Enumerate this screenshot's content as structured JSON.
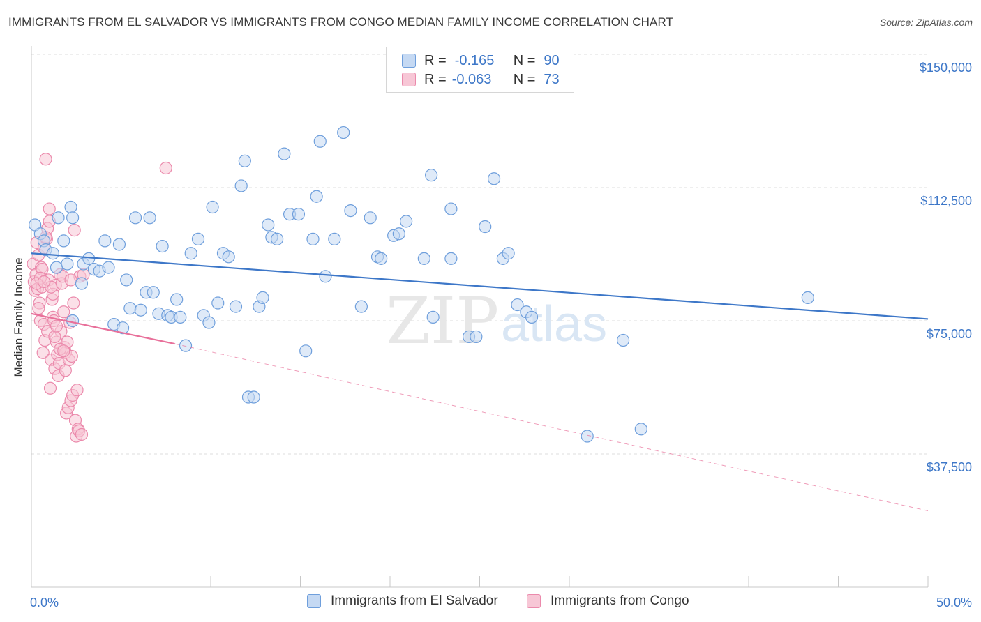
{
  "header": {
    "title": "IMMIGRANTS FROM EL SALVADOR VS IMMIGRANTS FROM CONGO MEDIAN FAMILY INCOME CORRELATION CHART",
    "source": "Source: ZipAtlas.com"
  },
  "legend": {
    "rows": [
      {
        "r_label": "R =",
        "r_value": "-0.165",
        "n_label": "N =",
        "n_value": "90"
      },
      {
        "r_label": "R =",
        "r_value": "-0.063",
        "n_label": "N =",
        "n_value": "73"
      }
    ]
  },
  "watermark": {
    "zip": "ZIP",
    "atlas": "atlas"
  },
  "colors": {
    "blue": "#3d77c8",
    "blue_fill": "#c5d9f3",
    "blue_stroke": "#6f9fdc",
    "pink": "#e8709a",
    "pink_fill": "#f7c7d6",
    "pink_stroke": "#eb8aac"
  },
  "chart_data": {
    "type": "scatter",
    "title": "IMMIGRANTS FROM EL SALVADOR VS IMMIGRANTS FROM CONGO MEDIAN FAMILY INCOME CORRELATION CHART",
    "xlabel": "",
    "ylabel": "Median Family Income",
    "xlim": [
      0,
      50
    ],
    "ylim": [
      0,
      150000
    ],
    "x_tick_labels": [
      "0.0%",
      "50.0%"
    ],
    "y_ticks": [
      37500,
      75000,
      112500,
      150000
    ],
    "y_tick_labels": [
      "$37,500",
      "$75,000",
      "$112,500",
      "$150,000"
    ],
    "grid": true,
    "legend_position": "bottom",
    "series": [
      {
        "name": "Immigrants from El Salvador",
        "color": "#3d77c8",
        "trend": {
          "x": [
            0,
            50
          ],
          "y": [
            94000,
            75500
          ]
        },
        "points": [
          [
            0.2,
            102000
          ],
          [
            0.5,
            99500
          ],
          [
            0.7,
            97500
          ],
          [
            0.8,
            95000
          ],
          [
            1.2,
            94000
          ],
          [
            1.4,
            90000
          ],
          [
            1.5,
            104000
          ],
          [
            1.8,
            97500
          ],
          [
            2.0,
            91000
          ],
          [
            2.2,
            107000
          ],
          [
            2.3,
            75000
          ],
          [
            2.3,
            104000
          ],
          [
            2.8,
            85500
          ],
          [
            2.9,
            91000
          ],
          [
            3.2,
            92500
          ],
          [
            3.5,
            89500
          ],
          [
            3.8,
            89000
          ],
          [
            4.1,
            97500
          ],
          [
            4.3,
            90000
          ],
          [
            4.6,
            74000
          ],
          [
            4.9,
            96500
          ],
          [
            5.1,
            73000
          ],
          [
            5.3,
            86500
          ],
          [
            5.5,
            78500
          ],
          [
            5.8,
            104000
          ],
          [
            6.1,
            78000
          ],
          [
            6.4,
            83000
          ],
          [
            6.6,
            104000
          ],
          [
            6.8,
            83000
          ],
          [
            7.1,
            77000
          ],
          [
            7.3,
            96000
          ],
          [
            7.6,
            76500
          ],
          [
            7.8,
            76000
          ],
          [
            8.1,
            81000
          ],
          [
            8.3,
            76000
          ],
          [
            8.6,
            68000
          ],
          [
            8.9,
            94000
          ],
          [
            9.3,
            98000
          ],
          [
            9.6,
            76500
          ],
          [
            9.9,
            74500
          ],
          [
            10.1,
            107000
          ],
          [
            10.4,
            80000
          ],
          [
            10.7,
            94000
          ],
          [
            11.0,
            93000
          ],
          [
            11.4,
            79000
          ],
          [
            11.7,
            113000
          ],
          [
            11.9,
            120000
          ],
          [
            12.1,
            53500
          ],
          [
            12.4,
            53500
          ],
          [
            12.7,
            79000
          ],
          [
            12.9,
            81500
          ],
          [
            13.2,
            102000
          ],
          [
            13.4,
            98500
          ],
          [
            13.7,
            98000
          ],
          [
            14.1,
            122000
          ],
          [
            14.4,
            105000
          ],
          [
            14.9,
            105000
          ],
          [
            15.3,
            66500
          ],
          [
            15.7,
            98000
          ],
          [
            15.9,
            110000
          ],
          [
            16.1,
            125500
          ],
          [
            16.4,
            87500
          ],
          [
            16.9,
            98000
          ],
          [
            17.4,
            128000
          ],
          [
            17.8,
            106000
          ],
          [
            18.4,
            79000
          ],
          [
            18.9,
            104000
          ],
          [
            19.3,
            93000
          ],
          [
            19.5,
            92500
          ],
          [
            20.2,
            99000
          ],
          [
            20.5,
            99500
          ],
          [
            20.9,
            103000
          ],
          [
            21.9,
            92500
          ],
          [
            22.3,
            116000
          ],
          [
            22.4,
            76000
          ],
          [
            23.4,
            92500
          ],
          [
            23.4,
            106500
          ],
          [
            24.4,
            70500
          ],
          [
            24.8,
            70500
          ],
          [
            25.3,
            101500
          ],
          [
            25.8,
            115000
          ],
          [
            26.3,
            92500
          ],
          [
            26.6,
            94000
          ],
          [
            27.1,
            79500
          ],
          [
            27.6,
            77500
          ],
          [
            27.9,
            76000
          ],
          [
            31.0,
            42500
          ],
          [
            33.0,
            69500
          ],
          [
            34.0,
            44500
          ],
          [
            43.3,
            81500
          ]
        ]
      },
      {
        "name": "Immigrants from Congo",
        "color": "#e8709a",
        "trend": {
          "x": [
            0,
            8
          ],
          "y": [
            77000,
            68500
          ]
        },
        "trend_extended": {
          "x": [
            8,
            50
          ],
          "y": [
            68500,
            21500
          ]
        },
        "points": [
          [
            0.1,
            91000
          ],
          [
            0.15,
            86000
          ],
          [
            0.2,
            83500
          ],
          [
            0.25,
            88000
          ],
          [
            0.3,
            97000
          ],
          [
            0.35,
            84000
          ],
          [
            0.4,
            93500
          ],
          [
            0.45,
            80000
          ],
          [
            0.5,
            75000
          ],
          [
            0.55,
            90000
          ],
          [
            0.6,
            84500
          ],
          [
            0.65,
            66000
          ],
          [
            0.7,
            74000
          ],
          [
            0.75,
            69500
          ],
          [
            0.8,
            120500
          ],
          [
            0.85,
            98000
          ],
          [
            0.9,
            101000
          ],
          [
            0.95,
            86500
          ],
          [
            1.0,
            103000
          ],
          [
            1.05,
            56000
          ],
          [
            1.1,
            64000
          ],
          [
            1.15,
            81000
          ],
          [
            1.2,
            76000
          ],
          [
            1.25,
            75000
          ],
          [
            1.3,
            61500
          ],
          [
            1.35,
            85000
          ],
          [
            1.4,
            69000
          ],
          [
            1.45,
            65500
          ],
          [
            1.5,
            59500
          ],
          [
            1.55,
            63000
          ],
          [
            1.6,
            88000
          ],
          [
            1.65,
            72000
          ],
          [
            1.7,
            85500
          ],
          [
            1.75,
            87500
          ],
          [
            1.8,
            77500
          ],
          [
            1.85,
            67500
          ],
          [
            1.9,
            66000
          ],
          [
            1.95,
            49000
          ],
          [
            2.0,
            69000
          ],
          [
            2.05,
            50500
          ],
          [
            2.1,
            64000
          ],
          [
            2.15,
            74500
          ],
          [
            2.2,
            52500
          ],
          [
            2.25,
            65000
          ],
          [
            2.3,
            54000
          ],
          [
            2.35,
            80000
          ],
          [
            2.4,
            100500
          ],
          [
            2.45,
            47000
          ],
          [
            2.5,
            42500
          ],
          [
            2.55,
            55500
          ],
          [
            2.6,
            44500
          ],
          [
            2.65,
            44000
          ],
          [
            2.7,
            87500
          ],
          [
            2.8,
            43000
          ],
          [
            0.6,
            89500
          ],
          [
            0.7,
            95500
          ],
          [
            0.8,
            98500
          ],
          [
            1.0,
            106500
          ],
          [
            1.2,
            82500
          ],
          [
            0.5,
            87000
          ],
          [
            0.9,
            72000
          ],
          [
            1.1,
            84500
          ],
          [
            1.3,
            70500
          ],
          [
            1.6,
            67000
          ],
          [
            1.8,
            66500
          ],
          [
            0.3,
            85500
          ],
          [
            0.4,
            78500
          ],
          [
            0.7,
            86000
          ],
          [
            1.4,
            73500
          ],
          [
            2.2,
            86500
          ],
          [
            2.9,
            88000
          ],
          [
            7.5,
            118000
          ],
          [
            1.9,
            61000
          ]
        ]
      }
    ]
  },
  "bottom_legend": {
    "blue_label": "Immigrants from El Salvador",
    "pink_label": "Immigrants from Congo"
  }
}
